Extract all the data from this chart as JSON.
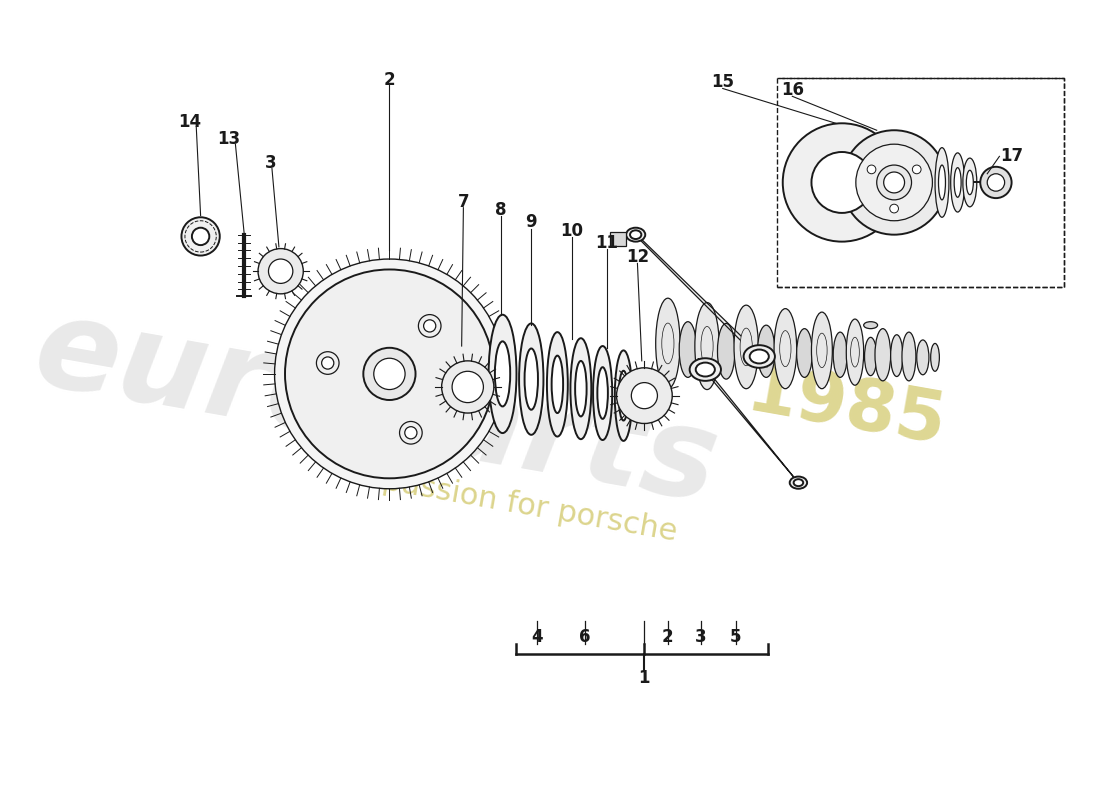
{
  "background_color": "#ffffff",
  "line_color": "#1a1a1a",
  "label_color": "#1a1a1a",
  "label_fontsize": 12,
  "watermark_color_logo": "#e8e8e8",
  "watermark_color_text": "#e8e0a0",
  "watermark_alpha": 0.9
}
